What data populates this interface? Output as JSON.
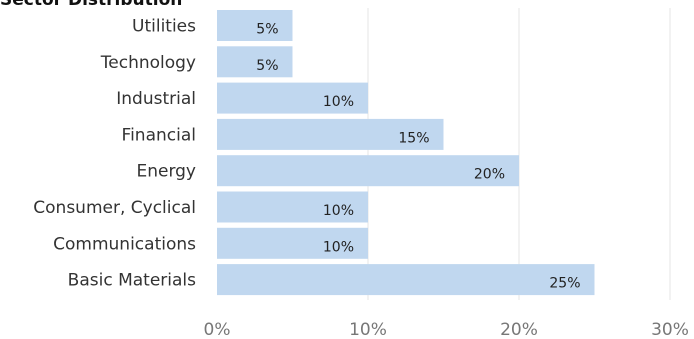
{
  "chart_data": {
    "type": "bar",
    "orientation": "horizontal",
    "title": "Sector Distribution",
    "categories": [
      "Utilities",
      "Technology",
      "Industrial",
      "Financial",
      "Energy",
      "Consumer, Cyclical",
      "Communications",
      "Basic Materials"
    ],
    "values": [
      5,
      5,
      10,
      15,
      20,
      10,
      10,
      25
    ],
    "value_labels": [
      "5%",
      "5%",
      "10%",
      "15%",
      "20%",
      "10%",
      "10%",
      "25%"
    ],
    "x_ticks": [
      "0%",
      "10%",
      "20%",
      "30%"
    ],
    "tick_values": [
      0,
      10,
      20,
      30
    ],
    "xlim": [
      0,
      30
    ],
    "grid": true,
    "legend": "none",
    "bar_color": "#c0d7ef",
    "grid_color": "#e6e6e6"
  }
}
